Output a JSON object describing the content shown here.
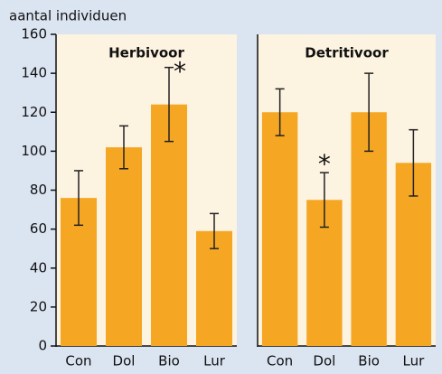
{
  "chart_data": [
    {
      "type": "bar",
      "title": "Herbivoor",
      "ylabel": "aantal individuen",
      "categories": [
        "Con",
        "Dol",
        "Bio",
        "Lur"
      ],
      "values": [
        76,
        102,
        124,
        59
      ],
      "errors": [
        14,
        11,
        19,
        9
      ],
      "color": "#f5a623",
      "ylim": [
        0,
        160
      ],
      "yticks": [
        0,
        20,
        40,
        60,
        80,
        100,
        120,
        140,
        160
      ],
      "annotations": [
        {
          "text": "*",
          "category": "Bio"
        }
      ]
    },
    {
      "type": "bar",
      "title": "Detritivoor",
      "categories": [
        "Con",
        "Dol",
        "Bio",
        "Lur"
      ],
      "values": [
        120,
        75,
        120,
        94
      ],
      "errors": [
        12,
        14,
        20,
        17
      ],
      "color": "#f5a623",
      "ylim": [
        0,
        160
      ],
      "annotations": [
        {
          "text": "*",
          "category": "Dol"
        }
      ]
    }
  ]
}
